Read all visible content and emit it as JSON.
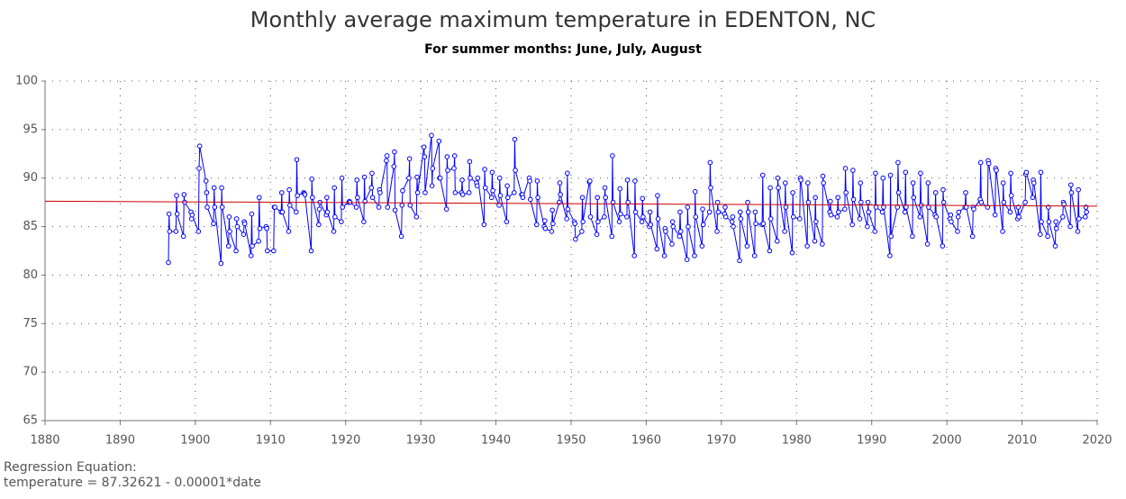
{
  "chart_data": {
    "type": "line",
    "title": "Monthly average maximum temperature in EDENTON, NC",
    "subtitle": "For summer months: June, July, August",
    "footnote": [
      "Regression Equation:",
      "temperature =  87.32621 - 0.00001*date"
    ],
    "xlim": [
      1880,
      2020
    ],
    "xticks": [
      1880,
      1890,
      1900,
      1910,
      1920,
      1930,
      1940,
      1950,
      1960,
      1970,
      1980,
      1990,
      2000,
      2010,
      2020
    ],
    "ylim": [
      65,
      100
    ],
    "yticks": [
      65,
      70,
      75,
      80,
      85,
      90,
      95,
      100
    ],
    "grid": true,
    "x": [
      1896.42,
      1896.5,
      1896.58,
      1897.42,
      1897.5,
      1897.58,
      1898.42,
      1898.5,
      1898.58,
      1899.42,
      1899.5,
      1899.58,
      1900.42,
      1900.5,
      1900.58,
      1901.42,
      1901.5,
      1901.58,
      1902.42,
      1902.5,
      1902.58,
      1903.42,
      1903.5,
      1903.58,
      1904.42,
      1904.5,
      1904.58,
      1905.42,
      1905.5,
      1905.58,
      1906.42,
      1906.5,
      1906.58,
      1907.42,
      1907.5,
      1907.58,
      1908.42,
      1908.5,
      1908.58,
      1909.42,
      1909.5,
      1909.58,
      1910.42,
      1910.5,
      1910.58,
      1911.42,
      1911.5,
      1911.58,
      1912.42,
      1912.5,
      1912.58,
      1913.42,
      1913.5,
      1913.58,
      1914.42,
      1914.5,
      1914.58,
      1915.42,
      1915.5,
      1915.58,
      1916.42,
      1916.5,
      1916.58,
      1917.42,
      1917.5,
      1917.58,
      1918.42,
      1918.5,
      1918.58,
      1919.42,
      1919.5,
      1919.58,
      1920.42,
      1920.5,
      1920.58,
      1921.42,
      1921.5,
      1921.58,
      1922.42,
      1922.5,
      1922.58,
      1923.42,
      1923.5,
      1923.58,
      1924.42,
      1924.5,
      1924.58,
      1925.42,
      1925.5,
      1925.58,
      1926.42,
      1926.5,
      1926.58,
      1927.42,
      1927.5,
      1927.58,
      1928.42,
      1928.5,
      1928.58,
      1929.42,
      1929.5,
      1929.58,
      1930.42,
      1930.5,
      1930.58,
      1931.42,
      1931.5,
      1931.58,
      1932.42,
      1932.5,
      1932.58,
      1933.42,
      1933.5,
      1933.58,
      1934.42,
      1934.5,
      1934.58,
      1935.42,
      1935.5,
      1935.58,
      1936.42,
      1936.5,
      1936.58,
      1937.42,
      1937.5,
      1937.58,
      1938.42,
      1938.5,
      1938.58,
      1939.42,
      1939.5,
      1939.58,
      1940.42,
      1940.5,
      1940.58,
      1941.42,
      1941.5,
      1941.58,
      1942.42,
      1942.5,
      1942.58,
      1943.42,
      1943.5,
      1943.58,
      1944.42,
      1944.5,
      1944.58,
      1945.42,
      1945.5,
      1945.58,
      1946.42,
      1946.5,
      1946.58,
      1947.42,
      1947.5,
      1947.58,
      1948.42,
      1948.5,
      1948.58,
      1949.42,
      1949.5,
      1949.58,
      1950.42,
      1950.5,
      1950.58,
      1951.42,
      1951.5,
      1951.58,
      1952.42,
      1952.5,
      1952.58,
      1953.42,
      1953.5,
      1953.58,
      1954.42,
      1954.5,
      1954.58,
      1955.42,
      1955.5,
      1955.58,
      1956.42,
      1956.5,
      1956.58,
      1957.42,
      1957.5,
      1957.58,
      1958.42,
      1958.5,
      1958.58,
      1959.42,
      1959.5,
      1959.58,
      1960.42,
      1960.5,
      1960.58,
      1961.42,
      1961.5,
      1961.58,
      1962.42,
      1962.5,
      1962.58,
      1963.42,
      1963.5,
      1963.58,
      1964.42,
      1964.5,
      1964.58,
      1965.42,
      1965.5,
      1965.58,
      1966.42,
      1966.5,
      1966.58,
      1967.42,
      1967.5,
      1967.58,
      1968.42,
      1968.5,
      1968.58,
      1969.42,
      1969.5,
      1969.58,
      1970.42,
      1970.5,
      1970.58,
      1971.42,
      1971.5,
      1971.58,
      1972.42,
      1972.5,
      1972.58,
      1973.42,
      1973.5,
      1973.58,
      1974.42,
      1974.5,
      1974.58,
      1975.42,
      1975.5,
      1975.58,
      1976.42,
      1976.5,
      1976.58,
      1977.42,
      1977.5,
      1977.58,
      1978.42,
      1978.5,
      1978.58,
      1979.42,
      1979.5,
      1979.58,
      1980.42,
      1980.5,
      1980.58,
      1981.42,
      1981.5,
      1981.58,
      1982.42,
      1982.5,
      1982.58,
      1983.42,
      1983.5,
      1983.58,
      1984.42,
      1984.5,
      1984.58,
      1985.42,
      1985.5,
      1985.58,
      1986.42,
      1986.5,
      1986.58,
      1987.42,
      1987.5,
      1987.58,
      1988.42,
      1988.5,
      1988.58,
      1989.42,
      1989.5,
      1989.58,
      1990.42,
      1990.5,
      1990.58,
      1991.42,
      1991.5,
      1991.58,
      1992.42,
      1992.5,
      1992.58,
      1993.42,
      1993.5,
      1993.58,
      1994.42,
      1994.5,
      1994.58,
      1995.42,
      1995.5,
      1995.58,
      1996.42,
      1996.5,
      1996.58,
      1997.42,
      1997.5,
      1997.58,
      1998.42,
      1998.5,
      1998.58,
      1999.42,
      1999.5,
      1999.58,
      2000.42,
      2000.5,
      2000.58,
      2001.42,
      2001.5,
      2001.58,
      2002.42,
      2002.5,
      2002.58,
      2003.42,
      2003.5,
      2003.58,
      2004.42,
      2004.5,
      2004.58,
      2005.42,
      2005.5,
      2005.58,
      2006.42,
      2006.5,
      2006.58,
      2007.42,
      2007.5,
      2007.58,
      2008.42,
      2008.5,
      2008.58,
      2009.42,
      2009.5,
      2009.58,
      2010.42,
      2010.5,
      2010.58,
      2011.42,
      2011.5,
      2011.58,
      2012.42,
      2012.5,
      2012.58,
      2013.42,
      2013.5,
      2013.58,
      2014.42,
      2014.5,
      2014.58,
      2015.42,
      2015.5,
      2015.58,
      2016.42,
      2016.5,
      2016.58,
      2017.42,
      2017.5,
      2017.58,
      2018.42,
      2018.5,
      2018.58
    ],
    "series": [
      {
        "name": "temperature",
        "color": "#0000ff",
        "markers": true,
        "values": [
          81.3,
          86.3,
          84.5,
          84.5,
          88.2,
          86.3,
          84.0,
          88.3,
          87.5,
          86.5,
          85.8,
          86.2,
          84.5,
          91.0,
          93.3,
          89.7,
          88.5,
          87.0,
          85.3,
          89.0,
          87.0,
          81.2,
          89.0,
          87.0,
          83.0,
          86.0,
          84.5,
          82.5,
          85.8,
          85.0,
          84.2,
          85.5,
          85.3,
          82.0,
          86.3,
          83.0,
          83.5,
          88.0,
          84.8,
          85.0,
          84.8,
          82.5,
          82.5,
          87.0,
          87.0,
          86.5,
          88.5,
          86.5,
          84.5,
          88.8,
          87.2,
          86.5,
          91.9,
          88.2,
          88.5,
          88.4,
          88.3,
          82.5,
          89.9,
          88.0,
          85.2,
          86.8,
          87.5,
          86.2,
          88.0,
          86.5,
          84.5,
          89.0,
          86.0,
          85.5,
          90.0,
          87.0,
          87.5,
          87.6,
          87.5,
          87.0,
          89.8,
          88.0,
          85.5,
          90.1,
          87.6,
          89.0,
          90.5,
          88.0,
          87.0,
          88.8,
          88.5,
          91.8,
          92.3,
          87.0,
          91.2,
          92.7,
          86.7,
          84.0,
          87.2,
          88.7,
          90.0,
          92.0,
          87.2,
          86.0,
          90.1,
          88.5,
          93.2,
          92.2,
          88.5,
          94.4,
          89.2,
          91.0,
          93.8,
          90.0,
          90.0,
          86.8,
          92.2,
          90.8,
          91.0,
          92.3,
          88.5,
          88.5,
          89.8,
          88.3,
          88.5,
          91.7,
          90.0,
          89.5,
          89.2,
          90.0,
          85.2,
          90.9,
          89.0,
          88.0,
          90.6,
          88.7,
          87.2,
          90.0,
          88.2,
          85.5,
          89.2,
          88.0,
          88.5,
          94.0,
          90.8,
          88.3,
          88.3,
          88.0,
          90.0,
          89.7,
          87.8,
          85.2,
          89.7,
          88.0,
          85.0,
          85.6,
          84.8,
          84.5,
          86.7,
          85.3,
          87.5,
          89.5,
          88.3,
          85.8,
          90.5,
          86.8,
          85.5,
          85.3,
          83.7,
          84.5,
          88.0,
          85.5,
          89.6,
          89.7,
          86.0,
          84.2,
          88.0,
          85.5,
          86.0,
          89.0,
          88.0,
          84.0,
          92.3,
          87.5,
          85.5,
          88.9,
          86.3,
          86.0,
          89.8,
          87.5,
          82.0,
          89.7,
          86.5,
          85.5,
          87.9,
          86.0,
          85.0,
          86.5,
          85.2,
          82.7,
          88.2,
          85.8,
          82.0,
          84.8,
          84.5,
          83.2,
          85.5,
          85.0,
          84.0,
          86.5,
          84.5,
          81.6,
          87.0,
          85.0,
          82.0,
          88.6,
          86.0,
          83.0,
          86.8,
          85.2,
          86.5,
          91.6,
          89.0,
          84.5,
          87.5,
          86.5,
          86.3,
          87.0,
          86.0,
          85.5,
          86.0,
          85.0,
          81.5,
          86.5,
          85.8,
          83.0,
          87.5,
          86.5,
          82.0,
          86.5,
          85.3,
          85.2,
          90.3,
          85.3,
          82.5,
          89.0,
          85.8,
          83.5,
          90.0,
          89.0,
          84.5,
          89.5,
          87.0,
          82.3,
          88.5,
          86.0,
          85.8,
          90.0,
          89.8,
          83.0,
          89.5,
          87.5,
          83.5,
          88.0,
          85.5,
          83.2,
          90.2,
          89.5,
          86.5,
          87.6,
          86.2,
          86.0,
          88.0,
          86.5,
          86.8,
          91.0,
          88.5,
          85.2,
          90.8,
          87.8,
          85.8,
          89.5,
          87.5,
          85.0,
          87.5,
          86.5,
          84.5,
          90.5,
          87.0,
          86.5,
          90.0,
          87.0,
          82.0,
          90.3,
          84.0,
          87.0,
          91.6,
          88.5,
          86.5,
          90.6,
          87.0,
          84.0,
          89.5,
          88.0,
          86.0,
          90.5,
          87.2,
          83.2,
          89.5,
          87.0,
          86.2,
          88.5,
          86.0,
          83.0,
          88.8,
          87.5,
          85.8,
          86.2,
          85.5,
          84.5,
          86.0,
          86.5,
          87.0,
          88.5,
          87.0,
          84.0,
          87.0,
          86.8,
          87.8,
          91.6,
          87.5,
          87.0,
          91.8,
          91.5,
          86.2,
          91.0,
          90.8,
          84.5,
          89.5,
          87.5,
          86.5,
          90.5,
          88.2,
          85.8,
          87.0,
          86.0,
          87.5,
          90.4,
          90.6,
          88.0,
          89.8,
          89.5,
          84.2,
          90.6,
          85.5,
          84.0,
          87.0,
          85.5,
          83.0,
          85.5,
          84.8,
          86.0,
          87.5,
          87.3,
          85.0,
          89.3,
          88.5,
          84.5,
          88.8,
          85.8,
          86.0,
          87.0,
          86.5
        ]
      },
      {
        "name": "regression",
        "color": "#cc0000",
        "markers": false,
        "x": [
          1880,
          2020
        ],
        "values": [
          87.62,
          87.11
        ]
      }
    ]
  }
}
